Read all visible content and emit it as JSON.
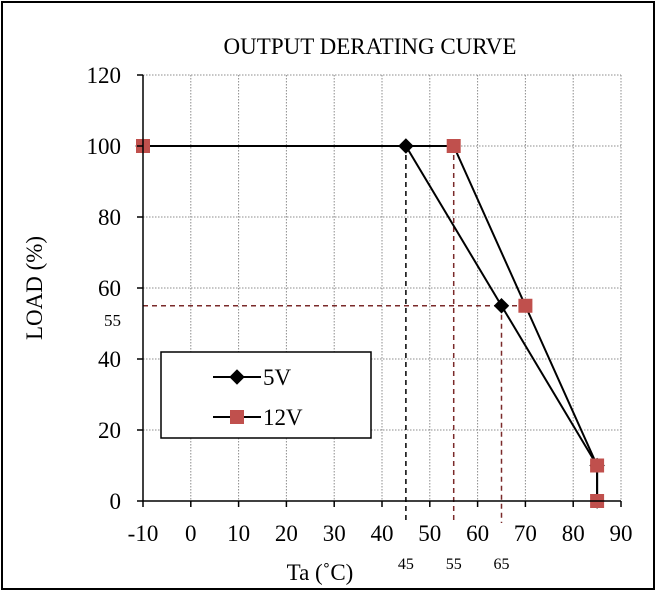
{
  "chart_data": {
    "type": "line",
    "title": "OUTPUT DERATING CURVE",
    "xlabel": "Ta (˚C)",
    "ylabel": "LOAD (%)",
    "xlim": [
      -10,
      90
    ],
    "ylim": [
      0,
      120
    ],
    "x_ticks": [
      -10,
      0,
      10,
      20,
      30,
      40,
      50,
      60,
      70,
      80,
      90
    ],
    "y_ticks": [
      0,
      20,
      40,
      60,
      80,
      100,
      120
    ],
    "grid": true,
    "legend_position": "lower-left",
    "series": [
      {
        "name": "5V",
        "marker": "diamond",
        "color": "#000000",
        "x": [
          -10,
          45,
          65,
          85,
          85
        ],
        "y": [
          100,
          100,
          55,
          10,
          0
        ]
      },
      {
        "name": "12V",
        "marker": "square",
        "color": "#c0504d",
        "x": [
          -10,
          55,
          70,
          85,
          85
        ],
        "y": [
          100,
          100,
          55,
          10,
          0
        ]
      }
    ],
    "annotations": {
      "reference_lines": [
        {
          "axis": "x",
          "value": 45,
          "to_y": 100,
          "color": "#000000",
          "label": "45"
        },
        {
          "axis": "x",
          "value": 55,
          "to_y": 100,
          "color": "#7a2a2a",
          "label": "55"
        },
        {
          "axis": "x",
          "value": 65,
          "to_y": 55,
          "color": "#7a2a2a",
          "label": "65"
        },
        {
          "axis": "y",
          "value": 55,
          "to_x": 70,
          "color": "#7a2a2a",
          "label": "55"
        }
      ]
    }
  }
}
